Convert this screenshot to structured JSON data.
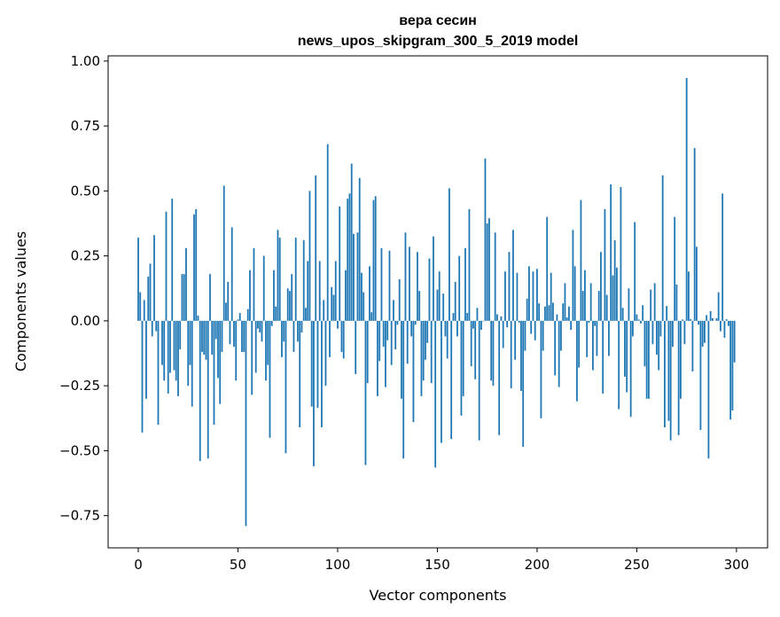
{
  "chart_data": {
    "type": "bar",
    "title": [
      "вера сесин",
      "news_upos_skipgram_300_5_2019 model"
    ],
    "xlabel": "Vector components",
    "ylabel": "Components values",
    "xlim": [
      -15.1,
      315.6
    ],
    "ylim": [
      -0.874,
      1.02
    ],
    "xticks": [
      0,
      50,
      100,
      150,
      200,
      250,
      300
    ],
    "xtick_labels": [
      "0",
      "50",
      "100",
      "150",
      "200",
      "250",
      "300"
    ],
    "yticks": [
      -0.75,
      -0.5,
      -0.25,
      0,
      0.25,
      0.5,
      0.75,
      1.0
    ],
    "ytick_labels": [
      "−0.75",
      "−0.50",
      "−0.25",
      "0.00",
      "0.25",
      "0.50",
      "0.75",
      "1.00"
    ],
    "grid": false,
    "color": "#1f77b4",
    "values": [
      0.32,
      0.11,
      -0.43,
      0.08,
      -0.3,
      0.17,
      0.22,
      -0.06,
      0.33,
      -0.04,
      -0.4,
      0.0,
      -0.17,
      -0.23,
      0.42,
      -0.28,
      -0.2,
      0.47,
      -0.19,
      -0.23,
      -0.29,
      -0.11,
      0.18,
      0.18,
      0.28,
      -0.25,
      -0.17,
      -0.33,
      0.41,
      0.43,
      0.02,
      -0.54,
      -0.12,
      -0.13,
      -0.15,
      -0.53,
      0.18,
      -0.13,
      -0.4,
      -0.07,
      -0.22,
      -0.32,
      -0.12,
      0.52,
      0.07,
      0.15,
      -0.09,
      0.36,
      -0.1,
      -0.23,
      0.005,
      0.03,
      -0.12,
      -0.12,
      -0.79,
      0.045,
      0.195,
      -0.285,
      0.28,
      -0.2,
      -0.03,
      -0.045,
      -0.08,
      0.25,
      -0.23,
      -0.17,
      -0.45,
      -0.02,
      0.195,
      0.055,
      0.35,
      0.32,
      -0.14,
      -0.08,
      -0.51,
      0.125,
      0.115,
      0.18,
      -0.12,
      0.32,
      -0.08,
      -0.41,
      -0.045,
      0.31,
      0.05,
      0.23,
      0.5,
      -0.33,
      -0.56,
      0.56,
      -0.335,
      0.23,
      -0.41,
      0.08,
      -0.25,
      0.68,
      -0.14,
      0.13,
      0.1,
      0.23,
      -0.03,
      0.44,
      -0.12,
      -0.145,
      0.195,
      0.47,
      0.49,
      0.605,
      0.335,
      -0.205,
      0.34,
      0.55,
      0.185,
      0.11,
      -0.555,
      -0.24,
      0.21,
      0.033,
      0.465,
      0.48,
      -0.29,
      -0.155,
      0.28,
      -0.1,
      -0.255,
      -0.075,
      0.27,
      -0.17,
      0.08,
      -0.11,
      -0.015,
      0.16,
      -0.3,
      -0.53,
      0.34,
      -0.165,
      0.285,
      -0.06,
      -0.39,
      -0.015,
      0.265,
      0.115,
      -0.29,
      -0.23,
      -0.15,
      -0.085,
      0.24,
      -0.24,
      0.325,
      -0.565,
      0.12,
      0.19,
      -0.47,
      0.105,
      -0.06,
      -0.145,
      0.51,
      -0.455,
      0.03,
      0.15,
      -0.06,
      0.25,
      -0.365,
      -0.29,
      0.28,
      0.03,
      0.43,
      -0.175,
      -0.03,
      -0.225,
      0.05,
      -0.46,
      -0.035,
      -0.002,
      0.625,
      0.375,
      0.395,
      -0.23,
      -0.25,
      0.34,
      0.025,
      -0.44,
      0.017,
      -0.105,
      0.19,
      -0.025,
      0.265,
      -0.26,
      0.35,
      -0.15,
      0.185,
      -0.007,
      -0.27,
      -0.485,
      -0.115,
      0.085,
      0.21,
      -0.05,
      0.19,
      -0.075,
      0.2,
      0.067,
      -0.375,
      -0.115,
      0.055,
      0.4,
      0.06,
      0.185,
      0.07,
      -0.21,
      0.025,
      -0.255,
      -0.115,
      0.067,
      0.145,
      0.013,
      0.055,
      -0.035,
      0.35,
      0.21,
      -0.31,
      -0.18,
      0.465,
      0.115,
      0.195,
      -0.14,
      -0.007,
      0.145,
      -0.19,
      -0.02,
      -0.135,
      0.115,
      0.265,
      -0.28,
      0.43,
      0.1,
      -0.135,
      0.525,
      0.175,
      0.31,
      0.205,
      -0.34,
      0.515,
      0.05,
      -0.215,
      -0.275,
      0.125,
      -0.37,
      -0.06,
      0.38,
      0.025,
      0.005,
      -0.01,
      0.06,
      -0.175,
      -0.3,
      -0.3,
      0.12,
      -0.09,
      0.145,
      -0.13,
      -0.19,
      -0.06,
      0.56,
      -0.41,
      0.057,
      -0.385,
      -0.46,
      -0.1,
      0.4,
      0.14,
      -0.44,
      -0.3,
      0.005,
      -0.09,
      0.935,
      0.19,
      0.006,
      -0.195,
      0.665,
      0.285,
      -0.015,
      -0.42,
      -0.1,
      -0.085,
      0.022,
      -0.53,
      0.037,
      0.01,
      0.0,
      0.01,
      0.11,
      -0.04,
      0.49,
      -0.065,
      0.006,
      -0.02,
      -0.38,
      -0.345,
      -0.16
    ]
  }
}
